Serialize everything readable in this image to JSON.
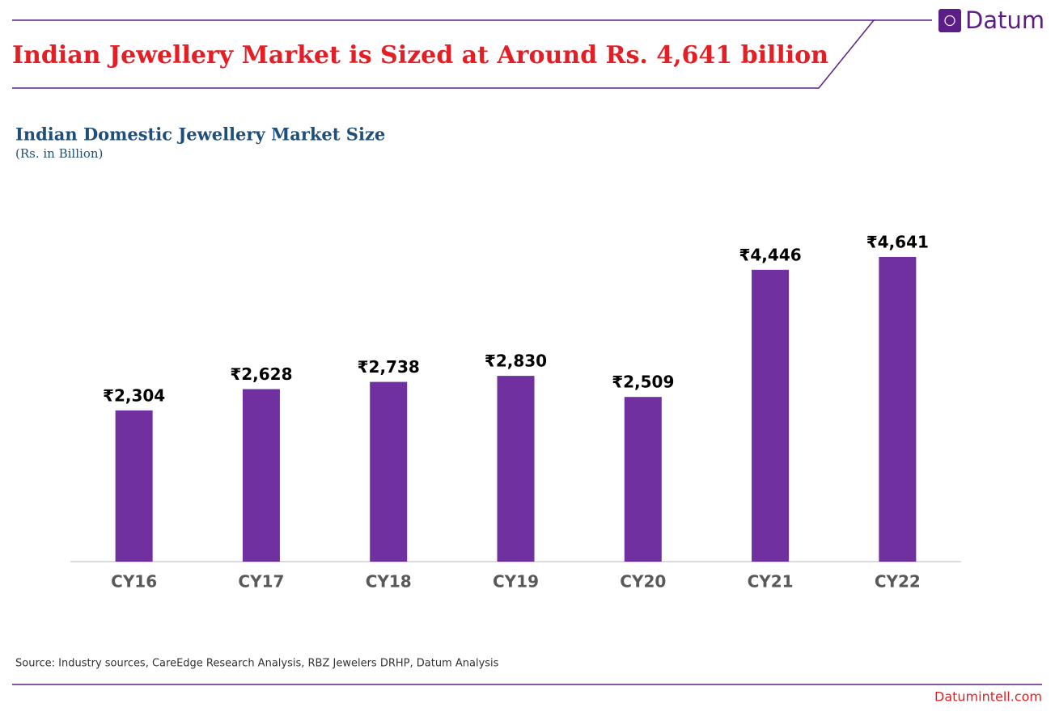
{
  "header": {
    "title": "Indian Jewellery Market is Sized at Around Rs. 4,641 billion",
    "brand": "Datum"
  },
  "chart_data": {
    "type": "bar",
    "title": "Indian Domestic Jewellery Market Size",
    "subtitle": "(Rs. in Billion)",
    "categories": [
      "CY16",
      "CY17",
      "CY18",
      "CY19",
      "CY20",
      "CY21",
      "CY22"
    ],
    "values": [
      2304,
      2628,
      2738,
      2830,
      2509,
      4446,
      4641
    ],
    "value_labels": [
      "₹2,304",
      "₹2,628",
      "₹2,738",
      "₹2,830",
      "₹2,509",
      "₹4,446",
      "₹4,641"
    ],
    "color": "#7030a0"
  },
  "footer": {
    "source": "Source: Industry sources, CareEdge Research  Analysis, RBZ Jewelers DRHP, Datum Analysis",
    "website": "Datumintell.com"
  }
}
